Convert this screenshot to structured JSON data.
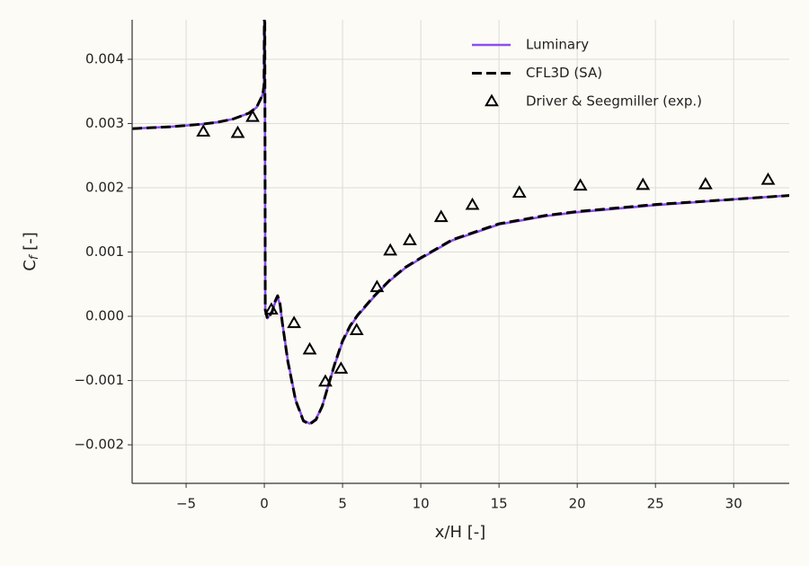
{
  "chart_data": {
    "type": "line",
    "xlabel": "x/H [-]",
    "ylabel": {
      "base": "C",
      "subscript": "f",
      "suffix": " [-]"
    },
    "xlim": [
      -8.45,
      33.55
    ],
    "ylim": [
      -0.0026,
      0.004615
    ],
    "xticks": [
      {
        "value": -5,
        "label": "−5"
      },
      0,
      5,
      10,
      15,
      20,
      25,
      30
    ],
    "yticks": [
      {
        "value": -0.002,
        "label": "−0.002"
      },
      {
        "value": -0.001,
        "label": "−0.001"
      },
      {
        "value": 0,
        "label": "0.000"
      },
      0.001,
      0.002,
      0.003,
      0.004
    ],
    "grid": true,
    "legend": "upper right",
    "series": [
      {
        "name": "Luminary",
        "color": "#8b4ff0",
        "linestyle": "solid",
        "x": [
          -8.45,
          -6,
          -5,
          -4,
          -3,
          -2,
          -1,
          -0.5,
          -0.1,
          -0.02,
          0,
          0.03,
          0.06,
          0.2,
          0.5,
          0.7,
          0.85,
          1.0,
          1.15,
          1.5,
          2.0,
          2.5,
          2.9,
          3.3,
          3.7,
          4.0,
          4.5,
          5.0,
          5.5,
          6.0,
          7.0,
          8.0,
          9.0,
          10.0,
          12.0,
          15.0,
          18.0,
          20.0,
          25.0,
          30.0,
          33.55
        ],
        "values": [
          0.00292,
          0.00295,
          0.00297,
          0.00299,
          0.00302,
          0.00307,
          0.00316,
          0.00325,
          0.00345,
          0.0036,
          0.0047,
          0.0047,
          0.0001,
          -3e-05,
          8e-05,
          0.00022,
          0.0003,
          0.00018,
          -0.0001,
          -0.00068,
          -0.0013,
          -0.00162,
          -0.00167,
          -0.0016,
          -0.0014,
          -0.00115,
          -0.00075,
          -0.0004,
          -0.00015,
          2e-05,
          0.0003,
          0.00055,
          0.00075,
          0.0009,
          0.00118,
          0.00143,
          0.00156,
          0.00162,
          0.00173,
          0.00182,
          0.00188
        ]
      },
      {
        "name": "CFL3D (SA)",
        "color": "#000000",
        "linestyle": "dashed",
        "x": [
          -8.45,
          -6,
          -5,
          -4,
          -3,
          -2,
          -1,
          -0.5,
          -0.1,
          -0.02,
          0,
          0.03,
          0.06,
          0.2,
          0.5,
          0.7,
          0.85,
          1.0,
          1.15,
          1.5,
          2.0,
          2.5,
          2.9,
          3.3,
          3.7,
          4.0,
          4.5,
          5.0,
          5.5,
          6.0,
          7.0,
          8.0,
          9.0,
          10.0,
          12.0,
          15.0,
          18.0,
          20.0,
          25.0,
          30.0,
          33.55
        ],
        "values": [
          0.00292,
          0.00295,
          0.00297,
          0.00299,
          0.00302,
          0.00307,
          0.00316,
          0.00325,
          0.00345,
          0.0036,
          0.0047,
          0.0047,
          0.0001,
          -4e-05,
          7e-05,
          0.00024,
          0.00032,
          0.0002,
          -0.0001,
          -0.0007,
          -0.00131,
          -0.00163,
          -0.00168,
          -0.00161,
          -0.0014,
          -0.00115,
          -0.00074,
          -0.00038,
          -0.00014,
          3e-05,
          0.00031,
          0.00056,
          0.00076,
          0.00091,
          0.00119,
          0.00144,
          0.00157,
          0.00163,
          0.00174,
          0.00182,
          0.00188
        ]
      },
      {
        "name": "Driver & Seegmiller (exp.)",
        "color": "#000000",
        "marker": "triangle",
        "x": [
          -3.9,
          -1.7,
          -0.75,
          0.45,
          1.9,
          2.9,
          3.9,
          4.9,
          5.9,
          7.2,
          8.05,
          9.3,
          11.3,
          13.3,
          16.3,
          20.2,
          24.2,
          28.2,
          32.2
        ],
        "values": [
          0.00287,
          0.00285,
          0.0031,
          0.0001,
          -0.00011,
          -0.00052,
          -0.00102,
          -0.00082,
          -0.00022,
          0.00045,
          0.00102,
          0.00118,
          0.00154,
          0.00173,
          0.00192,
          0.00203,
          0.00204,
          0.00205,
          0.00212
        ]
      }
    ]
  }
}
